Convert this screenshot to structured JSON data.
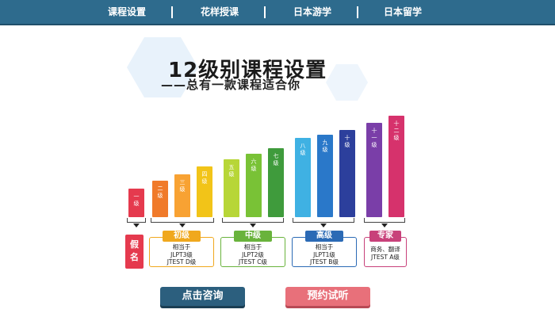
{
  "nav": {
    "items": [
      "课程设置",
      "花样授课",
      "日本游学",
      "日本留学"
    ]
  },
  "headline": "12级别课程设置",
  "subline": "——总有一款课程适合你",
  "levels": [
    {
      "label": "一级",
      "color": "#e53a4e"
    },
    {
      "label": "二级",
      "color": "#f07a2a"
    },
    {
      "label": "三级",
      "color": "#f8a233"
    },
    {
      "label": "四级",
      "color": "#f2c418"
    },
    {
      "label": "五级",
      "color": "#b7d637"
    },
    {
      "label": "六级",
      "color": "#79c236"
    },
    {
      "label": "七级",
      "color": "#3f9b3c"
    },
    {
      "label": "八级",
      "color": "#3fb1e3"
    },
    {
      "label": "九级",
      "color": "#2a78c9"
    },
    {
      "label": "十级",
      "color": "#2c3f9c"
    },
    {
      "label": "十一级",
      "color": "#7a3ea8"
    },
    {
      "label": "十二级",
      "color": "#d6326c"
    }
  ],
  "trial_tag": "假名",
  "tiers": [
    {
      "name": "初级",
      "lines": [
        "相当于",
        "JLPT3级",
        "JTEST D级"
      ],
      "color": "#f0a81e"
    },
    {
      "name": "中级",
      "lines": [
        "相当于",
        "JLPT2级",
        "JTEST C级"
      ],
      "color": "#69b33c"
    },
    {
      "name": "高级",
      "lines": [
        "相当于",
        "JLPT1级",
        "JTEST B级"
      ],
      "color": "#2b6ab5"
    },
    {
      "name": "专家",
      "lines": [
        "商务、翻译",
        "JTEST A级"
      ],
      "color": "#c8417a"
    }
  ],
  "buttons": {
    "consult": "点击咨询",
    "trial": "预约试听"
  }
}
